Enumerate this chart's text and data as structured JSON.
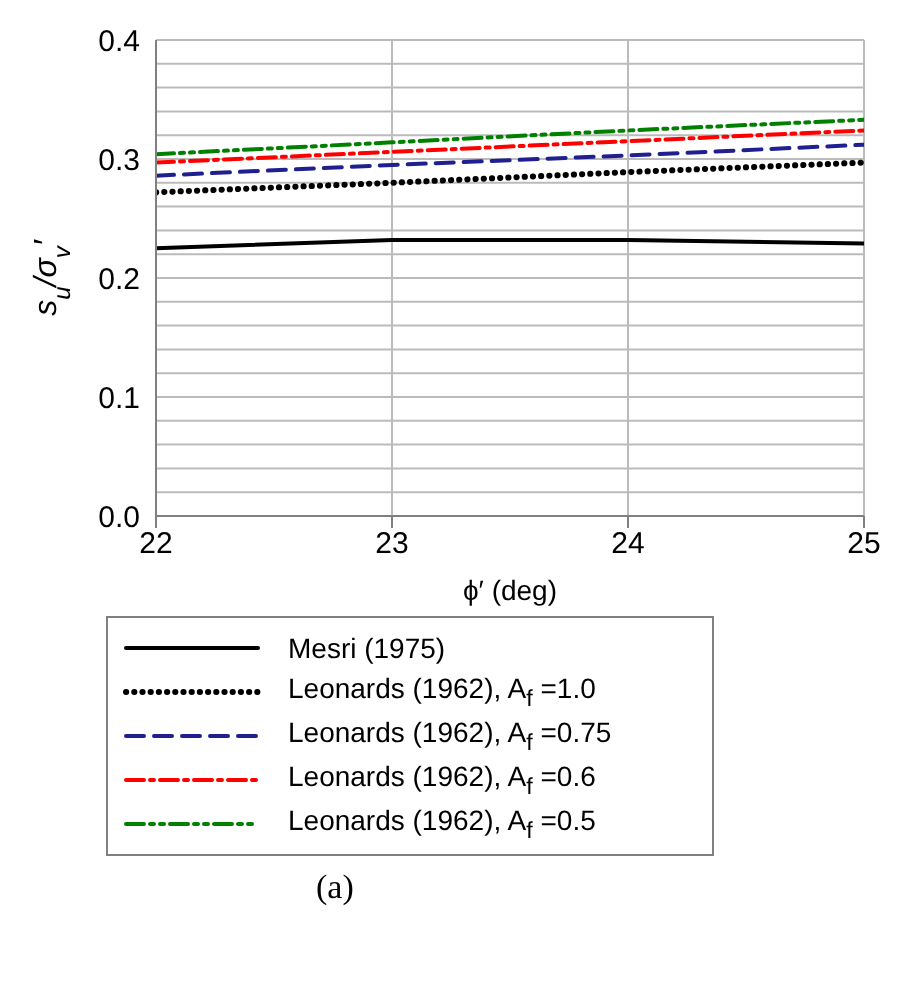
{
  "chart_data": {
    "type": "line",
    "xlabel": "ϕ′ (deg)",
    "ylabel": "s$_{u}$/σ$_{v}$′",
    "x": [
      22,
      23,
      24,
      25
    ],
    "series": [
      {
        "name": "Mesri (1975)",
        "color": "#000000",
        "line_style": "solid",
        "values": [
          0.225,
          0.232,
          0.232,
          0.229
        ]
      },
      {
        "name": "Leonards (1962), A$_{f}$ =1.0",
        "color": "#000000",
        "line_style": "dotted",
        "values": [
          0.272,
          0.28,
          0.289,
          0.297
        ]
      },
      {
        "name": "Leonards (1962), A$_{f}$ =0.75",
        "color": "#1f1f8f",
        "line_style": "dashed",
        "values": [
          0.286,
          0.295,
          0.303,
          0.312
        ]
      },
      {
        "name": "Leonards (1962), A$_{f}$ =0.6",
        "color": "#ff0000",
        "line_style": "dashdot",
        "values": [
          0.297,
          0.306,
          0.315,
          0.324
        ]
      },
      {
        "name": "Leonards (1962), A$_{f}$ =0.5",
        "color": "#008000",
        "line_style": "dashdotdot",
        "values": [
          0.304,
          0.314,
          0.324,
          0.333
        ]
      }
    ],
    "xlim": [
      22,
      25
    ],
    "xticks": [
      22,
      23,
      24,
      25
    ],
    "ylim": [
      0,
      0.4
    ],
    "yticks": [
      {
        "value": 0,
        "label": "0.0"
      },
      {
        "value": 0.02,
        "label": null
      },
      {
        "value": 0.04,
        "label": null
      },
      {
        "value": 0.06,
        "label": null
      },
      {
        "value": 0.08,
        "label": null
      },
      0.1,
      {
        "value": 0.12,
        "label": null
      },
      {
        "value": 0.14,
        "label": null
      },
      {
        "value": 0.16,
        "label": null
      },
      {
        "value": 0.18,
        "label": null
      },
      0.2,
      {
        "value": 0.22,
        "label": null
      },
      {
        "value": 0.24,
        "label": null
      },
      {
        "value": 0.26,
        "label": null
      },
      {
        "value": 0.28,
        "label": null
      },
      0.3,
      {
        "value": 0.32,
        "label": null
      },
      {
        "value": 0.34,
        "label": null
      },
      {
        "value": 0.36,
        "label": null
      },
      {
        "value": 0.38,
        "label": null
      },
      0.4
    ],
    "grid": true,
    "legend": "bottom",
    "marker": "none",
    "annotations": [
      "(a)"
    ]
  }
}
